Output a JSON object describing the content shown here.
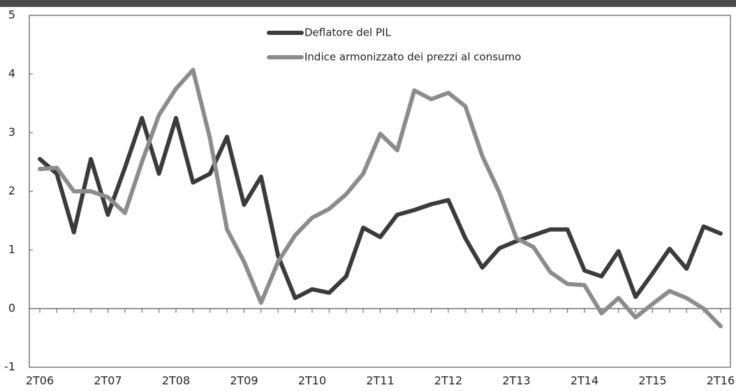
{
  "chart_data": {
    "type": "line",
    "categories": [
      "2T06",
      null,
      null,
      null,
      "2T07",
      null,
      null,
      null,
      "2T08",
      null,
      null,
      null,
      "2T09",
      null,
      null,
      null,
      "2T10",
      null,
      null,
      null,
      "2T11",
      null,
      null,
      null,
      "2T12",
      null,
      null,
      null,
      "2T13",
      null,
      null,
      null,
      "2T14",
      null,
      null,
      null,
      "2T15",
      null,
      null,
      null,
      "2T16"
    ],
    "series": [
      {
        "name": "Deflatore del PIL",
        "color": "#3b3b3b",
        "values": [
          2.55,
          2.3,
          1.3,
          2.55,
          1.6,
          2.4,
          3.25,
          2.3,
          3.25,
          2.15,
          2.3,
          2.93,
          1.77,
          2.25,
          0.9,
          0.18,
          0.33,
          0.27,
          0.55,
          1.38,
          1.22,
          1.6,
          1.68,
          1.78,
          1.85,
          1.2,
          0.7,
          1.03,
          1.15,
          1.25,
          1.35,
          1.35,
          0.65,
          0.55,
          0.98,
          0.2,
          0.6,
          1.02,
          0.68,
          1.4,
          1.28
        ]
      },
      {
        "name": "Indice armonizzato dei prezzi al consumo",
        "color": "#8c8c8c",
        "values": [
          2.38,
          2.4,
          2.0,
          2.0,
          1.9,
          1.63,
          2.5,
          3.3,
          3.75,
          4.07,
          2.9,
          1.35,
          0.8,
          0.1,
          0.8,
          1.25,
          1.55,
          1.7,
          1.95,
          2.3,
          2.98,
          2.7,
          3.72,
          3.57,
          3.68,
          3.45,
          2.6,
          1.98,
          1.2,
          1.05,
          0.62,
          0.42,
          0.4,
          -0.08,
          0.18,
          -0.15,
          0.08,
          0.3,
          0.18,
          0.0,
          -0.3
        ]
      }
    ],
    "ylim": [
      -1,
      5
    ],
    "yticks": [
      -1,
      0,
      1,
      2,
      3,
      4,
      5
    ],
    "legend": "top-center"
  }
}
